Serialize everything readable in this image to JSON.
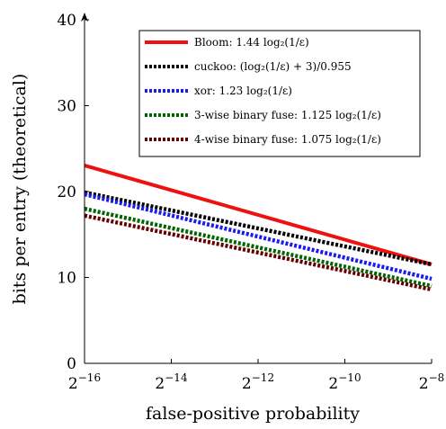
{
  "chart_data": {
    "type": "line",
    "xlabel": "false-positive probability",
    "ylabel": "bits per entry (theoretical)",
    "x": [
      -16,
      -8
    ],
    "x_scale": "log2",
    "xlim": [
      -16,
      -8
    ],
    "ylim": [
      0,
      40
    ],
    "x_ticks": [
      {
        "value": -16,
        "base": "2",
        "exp": "−16"
      },
      {
        "value": -14,
        "base": "2",
        "exp": "−14"
      },
      {
        "value": -12,
        "base": "2",
        "exp": "−12"
      },
      {
        "value": -10,
        "base": "2",
        "exp": "−10"
      },
      {
        "value": -8,
        "base": "2",
        "exp": "−8"
      }
    ],
    "y_ticks": [
      0,
      10,
      20,
      30,
      40
    ],
    "grid": false,
    "legend_position": "top-right",
    "series": [
      {
        "name": "Bloom: 1.44 log₂(1/ε)",
        "values": [
          23.04,
          11.52
        ],
        "color": "#ee1111",
        "dash": "solid"
      },
      {
        "name": "cuckoo: (log₂(1/ε) + 3)/0.955",
        "values": [
          19.9,
          11.52
        ],
        "color": "#000000",
        "dash": "dotted"
      },
      {
        "name": "xor: 1.23 log₂(1/ε)",
        "values": [
          19.68,
          9.84
        ],
        "color": "#1a1aee",
        "dash": "dotted"
      },
      {
        "name": "3-wise binary fuse: 1.125 log₂(1/ε)",
        "values": [
          18.0,
          9.0
        ],
        "color": "#006400",
        "dash": "dotted"
      },
      {
        "name": "4-wise binary fuse: 1.075 log₂(1/ε)",
        "values": [
          17.2,
          8.6
        ],
        "color": "#660000",
        "dash": "dotted"
      }
    ]
  }
}
